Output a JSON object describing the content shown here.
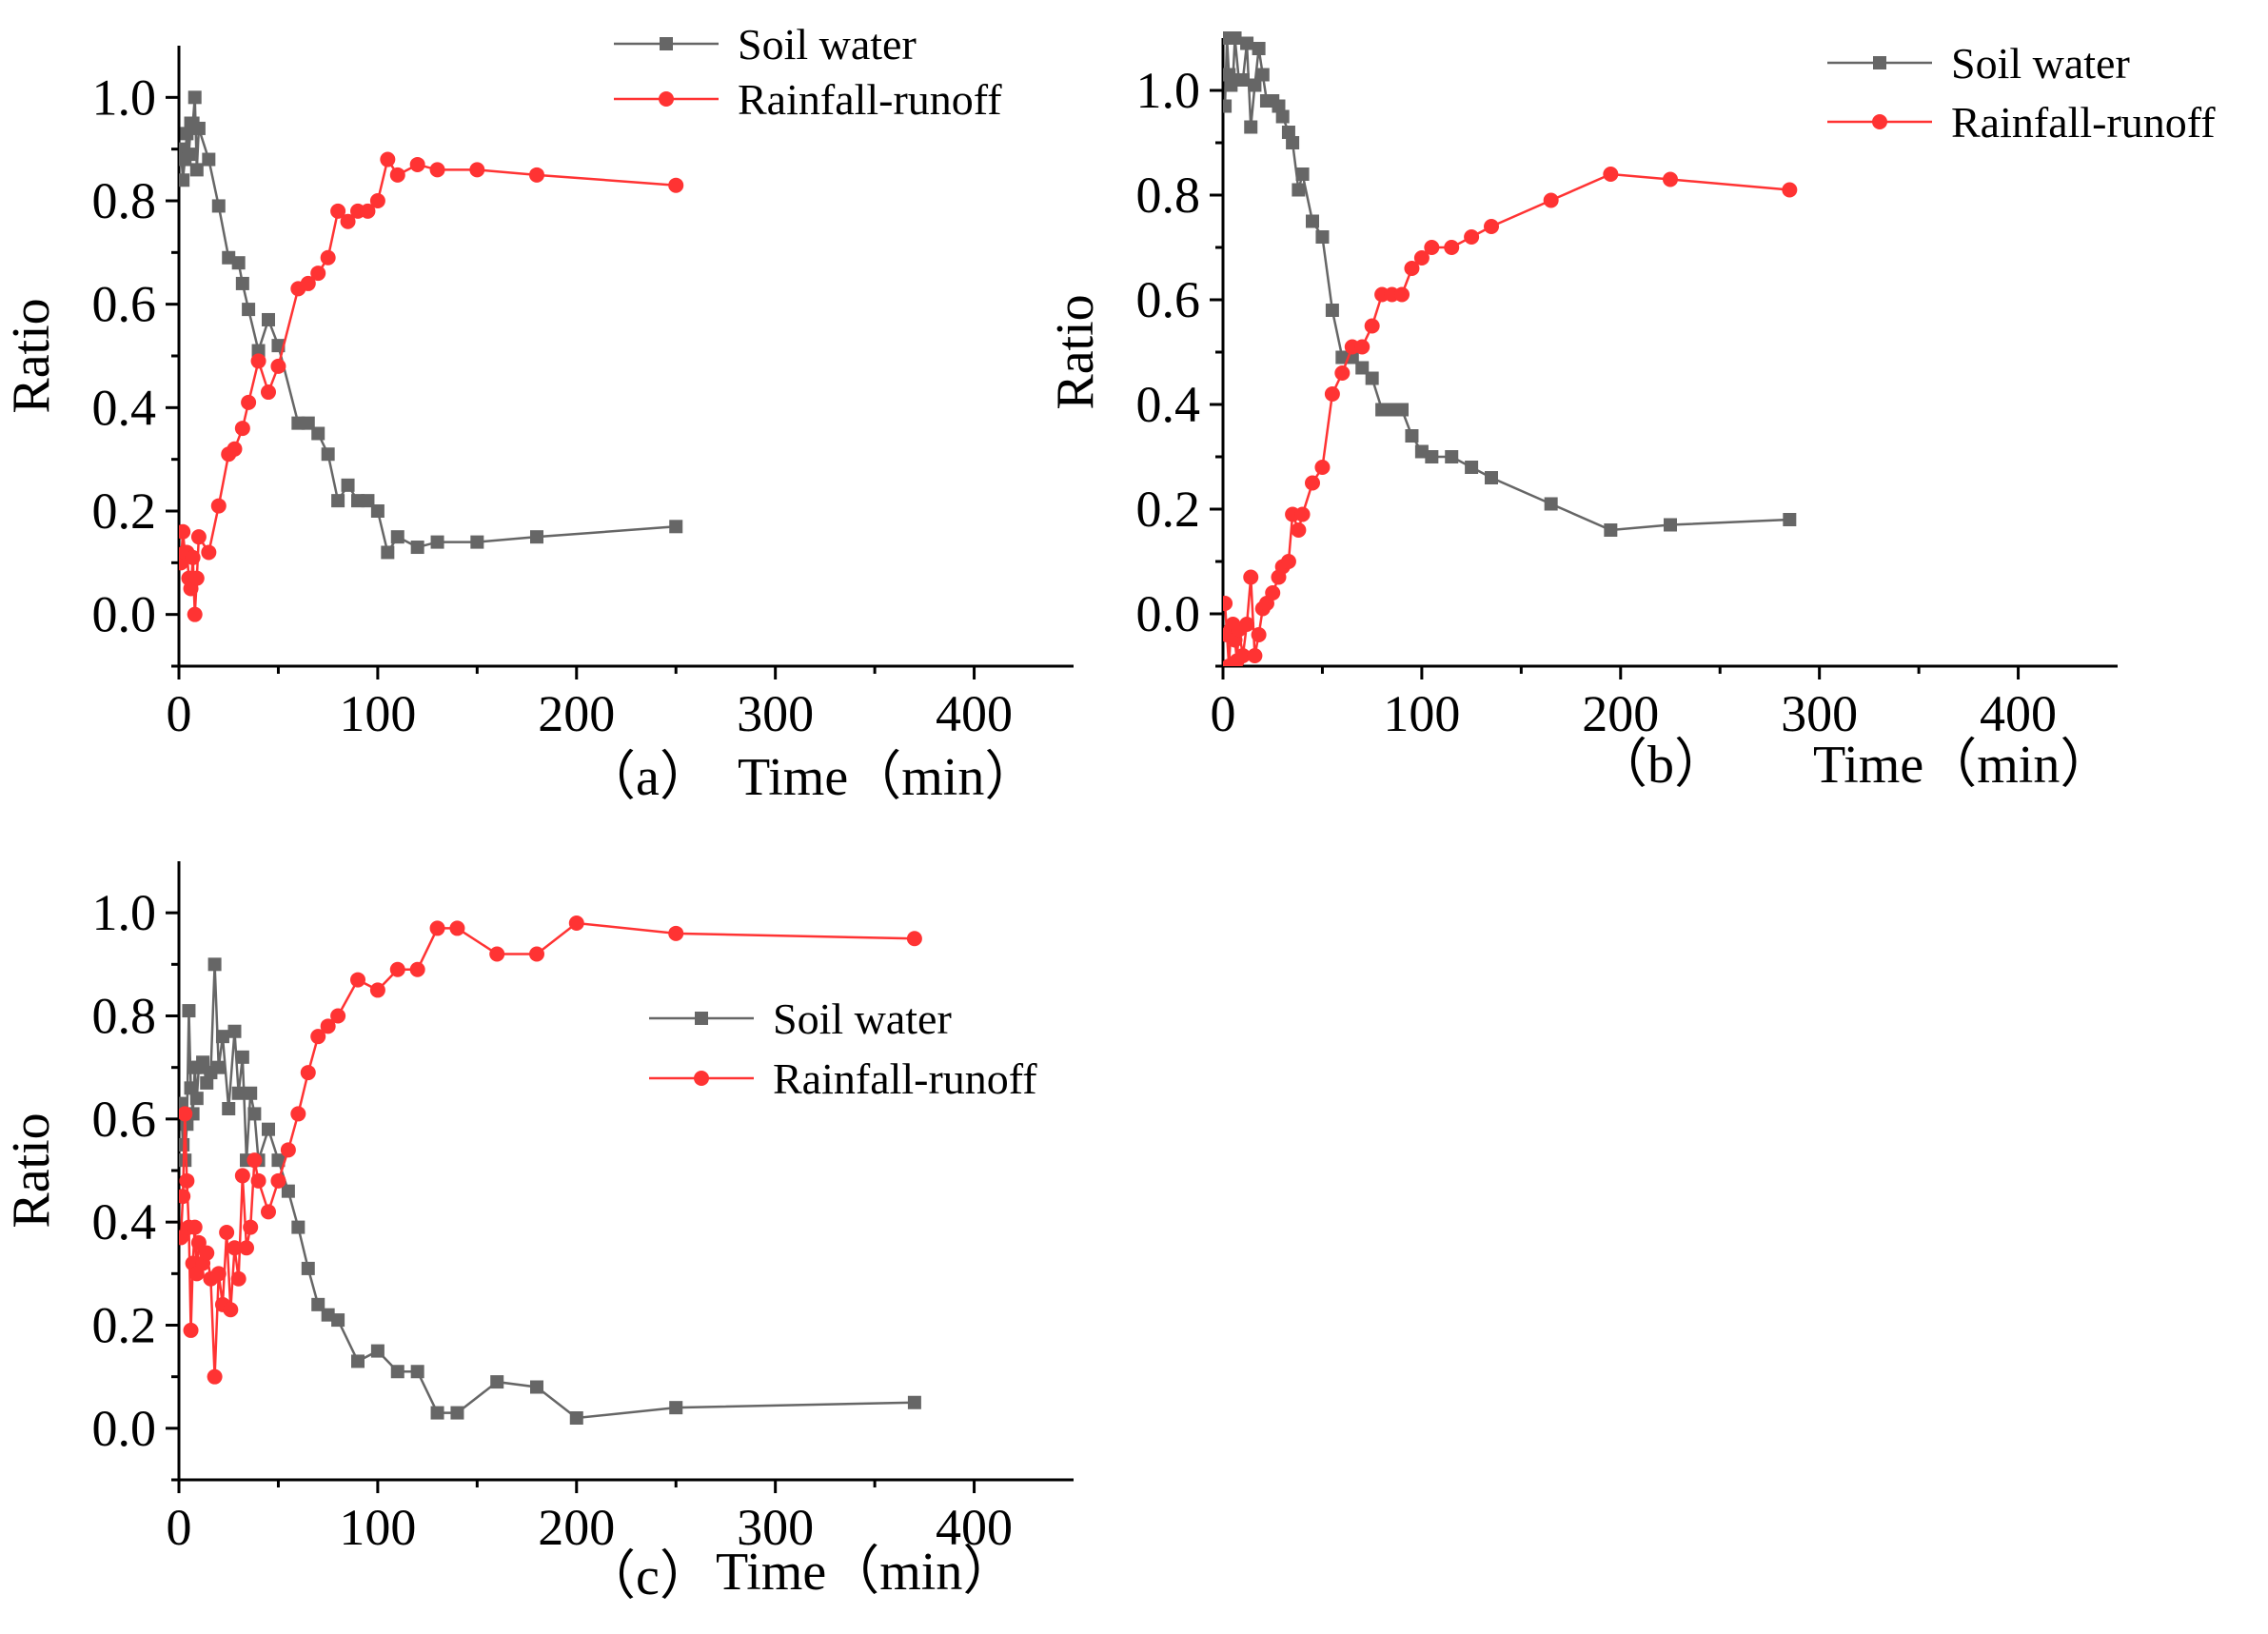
{
  "colors": {
    "soil_water": "#666666",
    "rainfall_runoff": "#ff3333",
    "axis": "#000000"
  },
  "markers": {
    "soil_water": "square",
    "rainfall_runoff": "circle"
  },
  "chart_data": [
    {
      "type": "line",
      "panel_label": "（a）",
      "xlabel": "Time（min）",
      "ylabel": "Ratio",
      "xlim": [
        0,
        450
      ],
      "ylim": [
        -0.1,
        1.1
      ],
      "xticks": [
        "0",
        "100",
        "200",
        "300",
        "400"
      ],
      "yticks": [
        "0.0",
        "0.2",
        "0.4",
        "0.6",
        "0.8",
        "1.0"
      ],
      "legend_position": "top-right",
      "series": [
        {
          "name": "Soil water",
          "x": [
            1,
            2,
            3,
            4,
            5,
            6,
            7,
            8,
            9,
            10,
            15,
            20,
            25,
            30,
            32,
            35,
            40,
            45,
            50,
            60,
            65,
            70,
            75,
            80,
            85,
            90,
            95,
            100,
            105,
            110,
            120,
            130,
            150,
            180,
            250
          ],
          "y": [
            0.9,
            0.84,
            0.88,
            0.93,
            0.89,
            0.95,
            0.95,
            1.0,
            0.86,
            0.94,
            0.88,
            0.79,
            0.69,
            0.68,
            0.64,
            0.59,
            0.51,
            0.57,
            0.52,
            0.37,
            0.37,
            0.35,
            0.31,
            0.22,
            0.25,
            0.22,
            0.22,
            0.2,
            0.12,
            0.15,
            0.13,
            0.14,
            0.14,
            0.15,
            0.17
          ]
        },
        {
          "name": "Rainfall-runoff",
          "x": [
            1,
            2,
            3,
            4,
            5,
            6,
            7,
            8,
            9,
            10,
            15,
            20,
            25,
            28,
            32,
            35,
            40,
            45,
            50,
            60,
            65,
            70,
            75,
            80,
            85,
            90,
            95,
            100,
            105,
            110,
            120,
            130,
            150,
            180,
            250
          ],
          "y": [
            0.1,
            0.16,
            0.12,
            0.12,
            0.07,
            0.05,
            0.11,
            0.0,
            0.07,
            0.15,
            0.12,
            0.21,
            0.31,
            0.32,
            0.36,
            0.41,
            0.49,
            0.43,
            0.48,
            0.63,
            0.64,
            0.66,
            0.69,
            0.78,
            0.76,
            0.78,
            0.78,
            0.8,
            0.88,
            0.85,
            0.87,
            0.86,
            0.86,
            0.85,
            0.83
          ]
        }
      ]
    },
    {
      "type": "line",
      "panel_label": "（b）",
      "xlabel": "Time（min）",
      "ylabel": "Ratio",
      "xlim": [
        0,
        450
      ],
      "ylim": [
        -0.1,
        1.1
      ],
      "xticks": [
        "0",
        "100",
        "200",
        "300",
        "400"
      ],
      "yticks": [
        "0.0",
        "0.2",
        "0.4",
        "0.6",
        "0.8",
        "1.0"
      ],
      "legend_position": "top-right",
      "series": [
        {
          "name": "Soil water",
          "x": [
            1,
            2,
            3,
            4,
            5,
            6,
            8,
            10,
            12,
            14,
            16,
            18,
            20,
            22,
            25,
            28,
            30,
            33,
            35,
            38,
            40,
            45,
            50,
            55,
            60,
            65,
            70,
            75,
            80,
            85,
            90,
            95,
            100,
            105,
            115,
            125,
            135,
            165,
            195,
            225,
            285
          ],
          "y": [
            0.97,
            1.1,
            1.03,
            1.01,
            1.02,
            1.1,
            1.02,
            1.02,
            1.09,
            0.93,
            1.01,
            1.08,
            1.03,
            0.98,
            0.98,
            0.97,
            0.95,
            0.92,
            0.9,
            0.81,
            0.84,
            0.75,
            0.72,
            0.58,
            0.49,
            0.49,
            0.47,
            0.45,
            0.39,
            0.39,
            0.39,
            0.34,
            0.31,
            0.3,
            0.3,
            0.28,
            0.26,
            0.21,
            0.16,
            0.17,
            0.18
          ]
        },
        {
          "name": "Rainfall-runoff",
          "x": [
            1,
            2,
            3,
            4,
            5,
            6,
            7,
            8,
            10,
            12,
            14,
            16,
            18,
            20,
            22,
            25,
            28,
            30,
            33,
            35,
            38,
            40,
            45,
            50,
            55,
            60,
            65,
            70,
            75,
            80,
            85,
            90,
            95,
            100,
            105,
            115,
            125,
            135,
            165,
            195,
            225,
            285
          ],
          "y": [
            0.02,
            -0.04,
            -0.1,
            -0.03,
            -0.02,
            -0.05,
            -0.09,
            -0.03,
            -0.08,
            -0.02,
            0.07,
            -0.08,
            -0.04,
            0.01,
            0.02,
            0.04,
            0.07,
            0.09,
            0.1,
            0.19,
            0.16,
            0.19,
            0.25,
            0.28,
            0.42,
            0.46,
            0.51,
            0.51,
            0.55,
            0.61,
            0.61,
            0.61,
            0.66,
            0.68,
            0.7,
            0.7,
            0.72,
            0.74,
            0.79,
            0.84,
            0.83,
            0.81
          ]
        }
      ]
    },
    {
      "type": "line",
      "panel_label": "（c）",
      "xlabel": "Time（min）",
      "ylabel": "Ratio",
      "xlim": [
        0,
        450
      ],
      "ylim": [
        -0.1,
        1.1
      ],
      "xticks": [
        "0",
        "100",
        "200",
        "300",
        "400"
      ],
      "yticks": [
        "0.0",
        "0.2",
        "0.4",
        "0.6",
        "0.8",
        "1.0"
      ],
      "legend_position": "center",
      "series": [
        {
          "name": "Soil water",
          "x": [
            1,
            2,
            3,
            4,
            5,
            6,
            7,
            8,
            9,
            10,
            12,
            14,
            16,
            18,
            20,
            22,
            25,
            28,
            30,
            32,
            34,
            36,
            38,
            40,
            45,
            50,
            55,
            60,
            65,
            70,
            75,
            80,
            90,
            100,
            110,
            120,
            130,
            140,
            160,
            180,
            200,
            250,
            370
          ],
          "y": [
            0.63,
            0.55,
            0.52,
            0.59,
            0.81,
            0.66,
            0.61,
            0.7,
            0.64,
            0.7,
            0.71,
            0.67,
            0.69,
            0.9,
            0.7,
            0.76,
            0.62,
            0.77,
            0.65,
            0.72,
            0.52,
            0.65,
            0.61,
            0.52,
            0.58,
            0.52,
            0.46,
            0.39,
            0.31,
            0.24,
            0.22,
            0.21,
            0.13,
            0.15,
            0.11,
            0.11,
            0.03,
            0.03,
            0.09,
            0.08,
            0.02,
            0.04,
            0.05
          ]
        },
        {
          "name": "Rainfall-runoff",
          "x": [
            1,
            2,
            3,
            4,
            5,
            6,
            7,
            8,
            9,
            10,
            12,
            14,
            16,
            18,
            20,
            22,
            24,
            26,
            28,
            30,
            32,
            34,
            36,
            38,
            40,
            45,
            50,
            55,
            60,
            65,
            70,
            75,
            80,
            90,
            100,
            110,
            120,
            130,
            140,
            160,
            180,
            200,
            250,
            370
          ],
          "y": [
            0.37,
            0.45,
            0.61,
            0.48,
            0.39,
            0.19,
            0.32,
            0.39,
            0.3,
            0.36,
            0.32,
            0.34,
            0.29,
            0.1,
            0.3,
            0.24,
            0.38,
            0.23,
            0.35,
            0.29,
            0.49,
            0.35,
            0.39,
            0.52,
            0.48,
            0.42,
            0.48,
            0.54,
            0.61,
            0.69,
            0.76,
            0.78,
            0.8,
            0.87,
            0.85,
            0.89,
            0.89,
            0.97,
            0.97,
            0.92,
            0.92,
            0.98,
            0.96,
            0.95
          ]
        }
      ]
    }
  ]
}
